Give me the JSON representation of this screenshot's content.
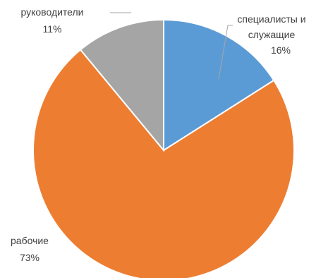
{
  "chart_data": {
    "type": "pie",
    "title": "",
    "slices": [
      {
        "label": "специалисты и служащие",
        "label_lines": [
          "специалисты и",
          "служащие"
        ],
        "value": 16,
        "value_label": "16%",
        "color": "#5B9BD5"
      },
      {
        "label": "рабочие",
        "label_lines": [
          "рабочие"
        ],
        "value": 73,
        "value_label": "73%",
        "color": "#ED7D31"
      },
      {
        "label": "руководители",
        "label_lines": [
          "руководители"
        ],
        "value": 11,
        "value_label": "11%",
        "color": "#A5A5A5"
      }
    ],
    "start_angle_deg": 0,
    "direction": "clockwise",
    "legend": "none",
    "data_labels": "outside with leader lines"
  }
}
